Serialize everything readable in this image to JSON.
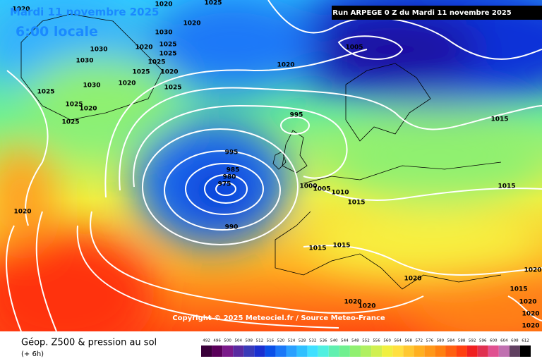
{
  "header": {
    "date": "Mardi 11 novembre 2025",
    "time": "6:00 locale",
    "run": "Run ARPEGE 0 Z du Mardi 11 novembre 2025"
  },
  "copyright": "Copyright © 2025 Meteociel.fr / Source Meteo-France",
  "footer": {
    "title": "Géop. Z500 & pression au sol",
    "step": "(+ 6h)"
  },
  "isobar_labels": [
    "1020",
    "1025",
    "1020",
    "1030",
    "1020",
    "1025",
    "1030",
    "1030",
    "1020",
    "1025",
    "1025",
    "1020",
    "1025",
    "1020",
    "1030",
    "1025",
    "1025",
    "1025",
    "1020",
    "1025",
    "1020",
    "1005",
    "995",
    "995",
    "985",
    "980",
    "975",
    "990",
    "1000",
    "1005",
    "1010",
    "1015",
    "1015",
    "1015",
    "1015",
    "1015",
    "1020",
    "1020",
    "1020",
    "1020",
    "1015",
    "1020",
    "1020",
    "1020",
    "1020"
  ],
  "legend": {
    "values": [
      492,
      496,
      500,
      504,
      508,
      512,
      516,
      520,
      524,
      528,
      532,
      536,
      540,
      544,
      548,
      552,
      556,
      560,
      564,
      568,
      572,
      576,
      580,
      584,
      588,
      592,
      596,
      600,
      604,
      608,
      612
    ],
    "colors": [
      "#3a003a",
      "#5a005a",
      "#7a1a8a",
      "#5a2aa0",
      "#3a3ab8",
      "#1a30d0",
      "#0a50e8",
      "#1a78f8",
      "#2aa0ff",
      "#30c0ff",
      "#40e0ff",
      "#50f0e0",
      "#60f0b0",
      "#70f090",
      "#90f070",
      "#b0f060",
      "#d0f050",
      "#f0f040",
      "#ffe040",
      "#ffc830",
      "#ffb020",
      "#ff9818",
      "#ff8010",
      "#ff6010",
      "#ff4010",
      "#f02020",
      "#e03050",
      "#e05090",
      "#c070b0",
      "#604060",
      "#000000"
    ]
  }
}
